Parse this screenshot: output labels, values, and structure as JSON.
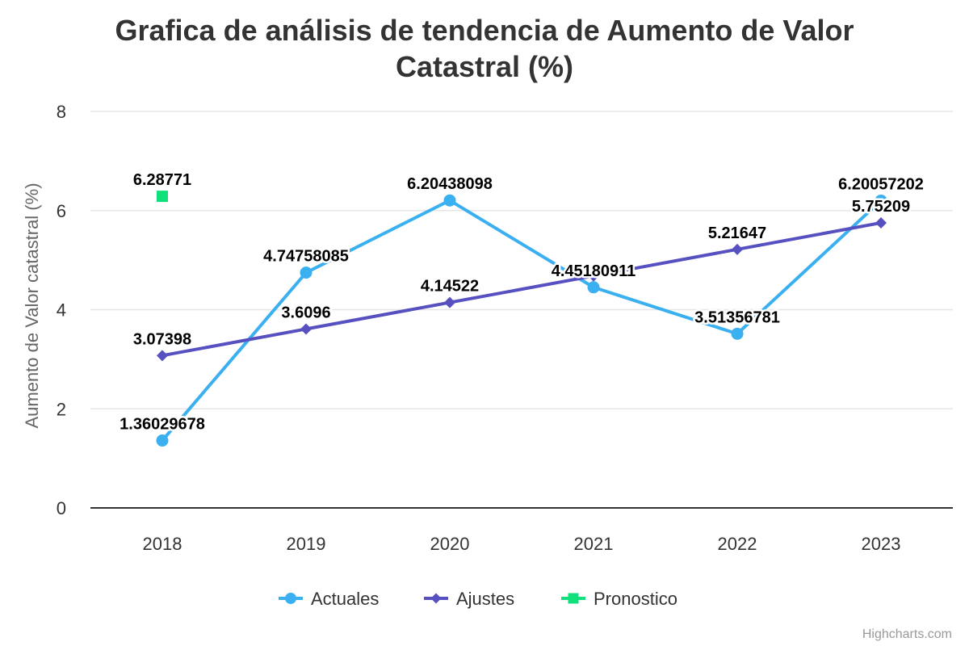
{
  "chart_data": {
    "type": "line",
    "title": "Grafica de análisis de tendencia de Aumento de Valor Catastral (%)",
    "title_lines": [
      "Grafica de análisis de tendencia de Aumento de Valor",
      "Catastral (%)"
    ],
    "xlabel": "",
    "ylabel": "Aumento de Valor catastral (%)",
    "categories": [
      "2018",
      "2019",
      "2020",
      "2021",
      "2022",
      "2023"
    ],
    "ylim": [
      0,
      8
    ],
    "yticks": [
      "0",
      "2",
      "4",
      "6",
      "8"
    ],
    "grid": true,
    "legend_position": "bottom-center",
    "series": [
      {
        "name": "Actuales",
        "marker": "circle",
        "color": "#3ab0f0",
        "values": [
          1.36029678,
          4.74758085,
          6.20438098,
          4.45180911,
          3.51356781,
          6.20057202
        ],
        "labels": [
          "1.36029678",
          "4.74758085",
          "6.20438098",
          "4.45180911",
          "3.51356781",
          "6.20057202"
        ]
      },
      {
        "name": "Ajustes",
        "marker": "diamond",
        "color": "#5650c0",
        "values": [
          3.07398,
          3.6096,
          4.14522,
          4.68085,
          5.21647,
          5.75209
        ],
        "labels": [
          "3.07398",
          "3.6096",
          "4.14522",
          "",
          "5.21647",
          "5.75209"
        ]
      },
      {
        "name": "Pronostico",
        "marker": "square",
        "color": "#10e07c",
        "values": [
          6.28771,
          null,
          null,
          null,
          null,
          null
        ],
        "labels": [
          "6.28771",
          "",
          "",
          "",
          "",
          ""
        ]
      }
    ],
    "credits": "Highcharts.com"
  }
}
